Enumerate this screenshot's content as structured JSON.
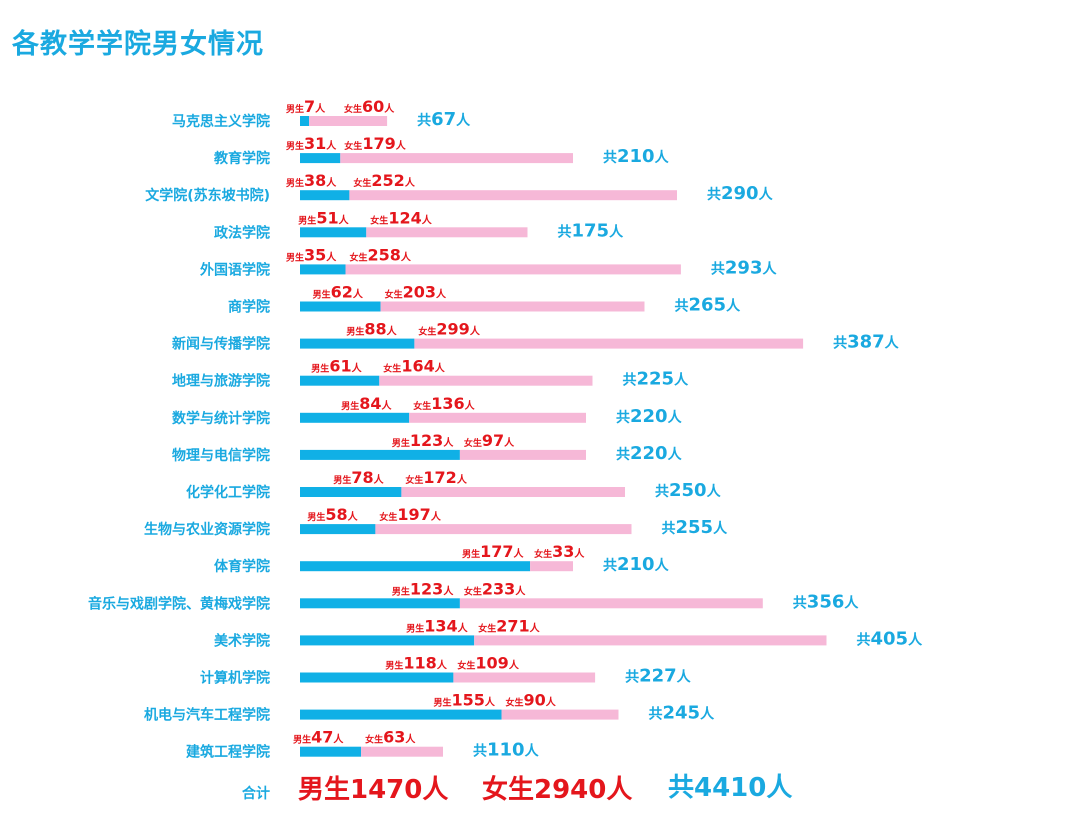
{
  "chart_data": {
    "type": "bar",
    "title": "各教学学院男女情况",
    "categories": [
      "马克思主义学院",
      "教育学院",
      "文学院(苏东坡书院)",
      "政法学院",
      "外国语学院",
      "商学院",
      "新闻与传播学院",
      "地理与旅游学院",
      "数学与统计学院",
      "物理与电信学院",
      "化学化工学院",
      "生物与农业资源学院",
      "体育学院",
      "音乐与戏剧学院、黄梅戏学院",
      "美术学院",
      "计算机学院",
      "机电与汽车工程学院",
      "建筑工程学院"
    ],
    "series": [
      {
        "name": "男生",
        "values": [
          7,
          31,
          38,
          51,
          35,
          62,
          88,
          61,
          84,
          123,
          78,
          58,
          177,
          123,
          134,
          118,
          155,
          47
        ]
      },
      {
        "name": "女生",
        "values": [
          60,
          179,
          252,
          124,
          258,
          203,
          299,
          164,
          136,
          97,
          172,
          197,
          33,
          233,
          271,
          109,
          90,
          63
        ]
      }
    ],
    "totals": [
      67,
      210,
      290,
      175,
      293,
      265,
      387,
      225,
      220,
      220,
      250,
      255,
      210,
      356,
      405,
      227,
      245,
      110
    ],
    "colors": {
      "male": "#10b0e6",
      "female": "#f6b8d7",
      "label_red": "#e4161c",
      "label_blue": "#1aa9e0"
    },
    "stacked": true,
    "orientation": "horizontal",
    "xlabel": "",
    "ylabel": ""
  },
  "labels": {
    "male_prefix": "男生",
    "female_prefix": "女生",
    "total_prefix": "共",
    "unit": "人"
  },
  "summary": {
    "label": "合计",
    "male": "男生1470人",
    "female": "女生2940人",
    "total": "共4410人"
  }
}
